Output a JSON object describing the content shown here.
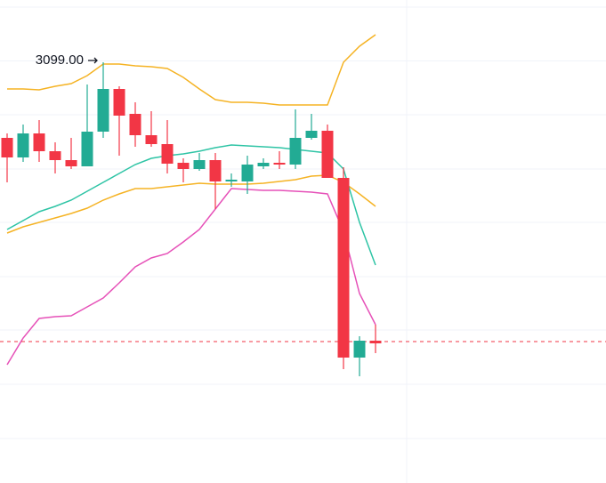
{
  "chart_data": {
    "type": "candlestick",
    "up_color": "#22ab94",
    "down_color": "#f23645",
    "ylim": [
      2862.5,
      3134
    ],
    "open": [
      3056.5,
      3045.5,
      3059,
      3049,
      3044,
      3040.5,
      3060,
      3084,
      3070,
      3058,
      3053,
      3042.5,
      3039,
      3044,
      3032,
      3032,
      3040.5,
      3042.5,
      3041.5,
      3056.5,
      3060.5,
      3034,
      2933,
      2942.5
    ],
    "high": [
      3059,
      3064,
      3066.5,
      3054,
      3056.5,
      3086.5,
      3099,
      3085.5,
      3076.5,
      3071.5,
      3066.5,
      3045,
      3048,
      3048,
      3036.5,
      3046.5,
      3045,
      3049,
      3072.5,
      3070,
      3064,
      3040,
      2945,
      2951.5
    ],
    "low": [
      3031.5,
      3043,
      3043,
      3036.5,
      3039,
      3040.5,
      3056.5,
      3046.5,
      3051.5,
      3051.5,
      3036.5,
      3031.5,
      3038,
      3016.5,
      3029,
      3025,
      3039,
      3039,
      3039,
      3055.5,
      3034,
      2926.5,
      2922.5,
      2935.5
    ],
    "close": [
      3045.5,
      3059,
      3049,
      3044,
      3040.5,
      3060,
      3084,
      3069,
      3058,
      3053,
      3042,
      3039,
      3044,
      3032,
      3033,
      3041.5,
      3042.5,
      3041.5,
      3056.5,
      3060.5,
      3034,
      2933,
      2942.5,
      2941
    ],
    "lines": [
      {
        "color": "#f5b324",
        "values": [
          3084,
          3084,
          3083.5,
          3085.5,
          3087,
          3091.5,
          3098,
          3098,
          3097,
          3096.5,
          3095.5,
          3090.5,
          3084,
          3078,
          3076.5,
          3076.5,
          3076,
          3075,
          3075,
          3075,
          3075,
          3099,
          3108,
          3114.5
        ]
      },
      {
        "color": "#f5b324",
        "values": [
          3003,
          3006.5,
          3009,
          3011.5,
          3014,
          3017,
          3021.5,
          3025,
          3028,
          3028,
          3029,
          3030,
          3031,
          3030.5,
          3030.5,
          3030.5,
          3031,
          3032,
          3033,
          3035,
          3035.5,
          3031.5,
          3025,
          3018
        ]
      },
      {
        "color": "#2ec4a5",
        "values": [
          3005,
          3010,
          3015,
          3018,
          3021.5,
          3026.5,
          3031.5,
          3036.5,
          3041.5,
          3045,
          3046.5,
          3047.5,
          3049,
          3051,
          3052.5,
          3052,
          3051.5,
          3051,
          3050,
          3049,
          3048,
          3039,
          3009,
          2985
        ]
      },
      {
        "color": "#e651b8",
        "values": [
          2929,
          2944,
          2955,
          2956,
          2956.5,
          2961.5,
          2966.5,
          2975,
          2984,
          2989,
          2991.5,
          2998,
          3005,
          3016.5,
          3028,
          3027.5,
          3027,
          3027,
          3026.5,
          3026,
          3025,
          3004,
          2969,
          2951.5
        ]
      }
    ],
    "price_line": 2942,
    "price_line_color": "#f23645",
    "annotation": {
      "text": "3099.00",
      "value": 3099
    }
  }
}
